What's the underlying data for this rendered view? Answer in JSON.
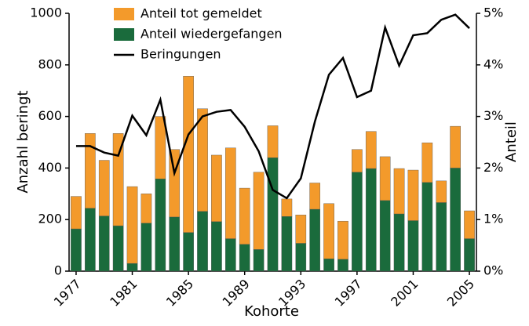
{
  "chart_data": {
    "type": "bar",
    "x_label": "Kohorte",
    "y_label": "Anzahl beringt",
    "y2_label": "Anteil",
    "categories": [
      "1977",
      null,
      null,
      null,
      "1981",
      null,
      null,
      null,
      "1985",
      null,
      null,
      null,
      "1989",
      null,
      null,
      null,
      "1993",
      null,
      null,
      null,
      "1997",
      null,
      null,
      null,
      "2001",
      null,
      null,
      null,
      "2005"
    ],
    "series": [
      {
        "name": "Anteil tot gemeldet",
        "type": "bar",
        "axis": "y2",
        "color": "#f39a2b",
        "values": [
          0.63,
          1.45,
          1.08,
          1.79,
          1.49,
          0.57,
          1.21,
          1.31,
          3.03,
          1.99,
          1.29,
          1.76,
          1.09,
          1.5,
          0.62,
          0.34,
          0.55,
          0.51,
          1.07,
          0.74,
          0.44,
          0.72,
          0.85,
          0.88,
          0.98,
          0.77,
          0.42,
          0.81,
          0.54
        ]
      },
      {
        "name": "Anteil wiedergefangen",
        "type": "bar",
        "axis": "y2",
        "color": "#1a6b3c",
        "values": [
          0.82,
          1.22,
          1.07,
          0.88,
          0.15,
          0.93,
          1.79,
          1.05,
          0.75,
          1.16,
          0.96,
          0.63,
          0.52,
          0.42,
          2.2,
          1.06,
          0.54,
          1.2,
          0.24,
          0.23,
          1.92,
          1.99,
          1.37,
          1.11,
          0.98,
          1.72,
          1.33,
          2.0,
          0.63
        ]
      },
      {
        "name": "Beringungen",
        "type": "line",
        "color": "#000000",
        "values": [
          485,
          485,
          460,
          448,
          603,
          527,
          665,
          380,
          530,
          600,
          618,
          625,
          560,
          465,
          315,
          283,
          360,
          580,
          762,
          827,
          675,
          700,
          945,
          797,
          915,
          923,
          975,
          995,
          942
        ]
      }
    ],
    "ylim": [
      0,
      1000
    ],
    "yticks": [
      0,
      200,
      400,
      600,
      800,
      1000
    ],
    "y2lim": [
      0,
      5
    ],
    "y2ticks": [
      {
        "value": 0,
        "label": "0%"
      },
      {
        "value": 1,
        "label": "1%"
      },
      {
        "value": 2,
        "label": "2%"
      },
      {
        "value": 3,
        "label": "3%"
      },
      {
        "value": 4,
        "label": "4%"
      },
      {
        "value": 5,
        "label": "5%"
      }
    ],
    "legend": "top-left",
    "stacked": true
  }
}
